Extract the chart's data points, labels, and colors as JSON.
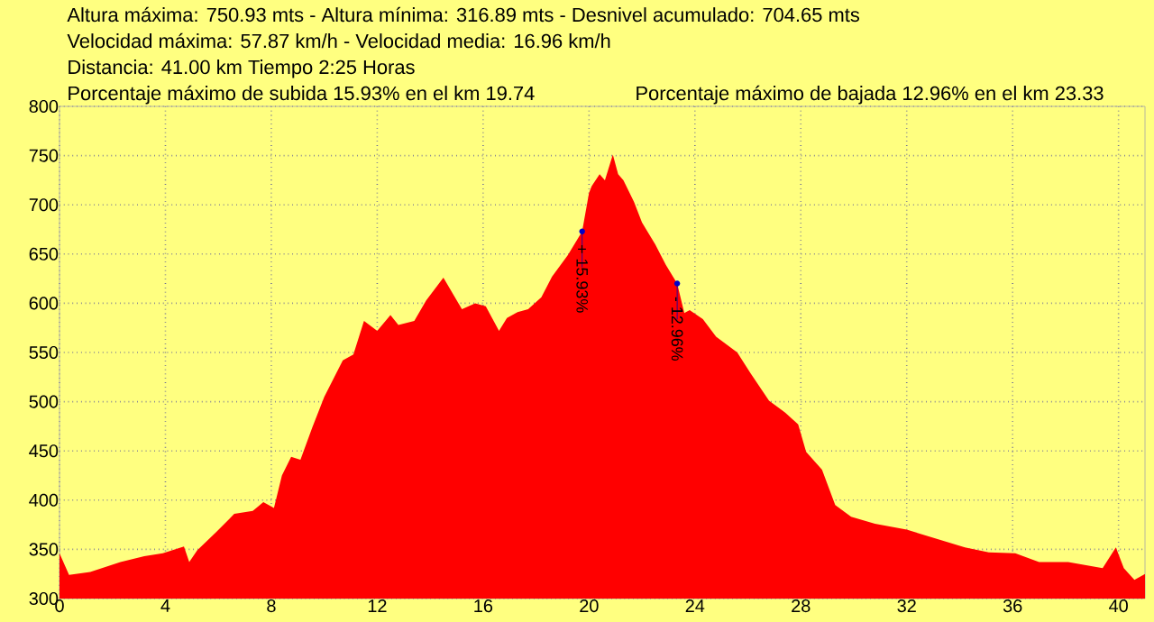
{
  "chart_data": {
    "type": "area",
    "color": "#ff0000",
    "grid": true,
    "xlim": [
      0,
      41
    ],
    "ylim": [
      300,
      800
    ],
    "xticks": [
      0,
      4,
      8,
      12,
      16,
      20,
      24,
      28,
      32,
      36,
      40
    ],
    "yticks": [
      300,
      350,
      400,
      450,
      500,
      550,
      600,
      650,
      700,
      750,
      800
    ],
    "x": [
      0,
      0.36,
      1.16,
      2.3,
      3.2,
      3.9,
      4.7,
      4.9,
      5.2,
      5.9,
      6.6,
      7.3,
      7.7,
      8.1,
      8.4,
      8.75,
      9.1,
      9.55,
      10.0,
      10.7,
      11.1,
      11.5,
      12.0,
      12.5,
      12.8,
      13.4,
      13.85,
      14.5,
      15.2,
      15.7,
      16.1,
      16.6,
      16.9,
      17.3,
      17.7,
      18.2,
      18.6,
      19.2,
      19.74,
      20.0,
      20.1,
      20.4,
      20.6,
      20.9,
      21.1,
      21.3,
      21.7,
      22.0,
      22.5,
      22.9,
      23.33,
      23.6,
      23.8,
      24.3,
      24.8,
      25.6,
      26.1,
      26.8,
      27.4,
      27.9,
      28.2,
      28.8,
      29.3,
      29.9,
      30.8,
      32.0,
      33.1,
      34.2,
      35.1,
      36.1,
      37.0,
      38.1,
      39.4,
      39.9,
      40.2,
      40.6,
      41.0
    ],
    "values": [
      346,
      324,
      327,
      337,
      343,
      346,
      353,
      337,
      349,
      367,
      386,
      389,
      398,
      392,
      425,
      444,
      441,
      474,
      505,
      542,
      548,
      582,
      572,
      588,
      578,
      582,
      603,
      626,
      594,
      600,
      597,
      572,
      585,
      591,
      594,
      606,
      627,
      649,
      673,
      712,
      719,
      731,
      725,
      751,
      731,
      725,
      703,
      682,
      660,
      639,
      620,
      590,
      593,
      584,
      566,
      550,
      529,
      501,
      489,
      477,
      449,
      431,
      395,
      383,
      376,
      370,
      361,
      352,
      347,
      346,
      337,
      337,
      331,
      352,
      331,
      319,
      325
    ],
    "annotations": [
      "Altura máxima: 750.93 mts - Altura mínima: 316.89 mts - Desnivel acumulado: 704.65 mts",
      "Velocidad máxima: 57.87 km/h - Velocidad media: 16.96 km/h",
      "Distancia: 41.00 km Tiempo 2:25 Horas",
      "Porcentaje máximo de subida 15.93%  en el km 19.74",
      "Porcentaje máximo de bajada 12.96%  en el km 23.33",
      {
        "text": "+ 15.93%",
        "x": 19.74,
        "y": 673
      },
      {
        "text": "- 12.96%",
        "x": 23.33,
        "y": 620
      }
    ]
  }
}
